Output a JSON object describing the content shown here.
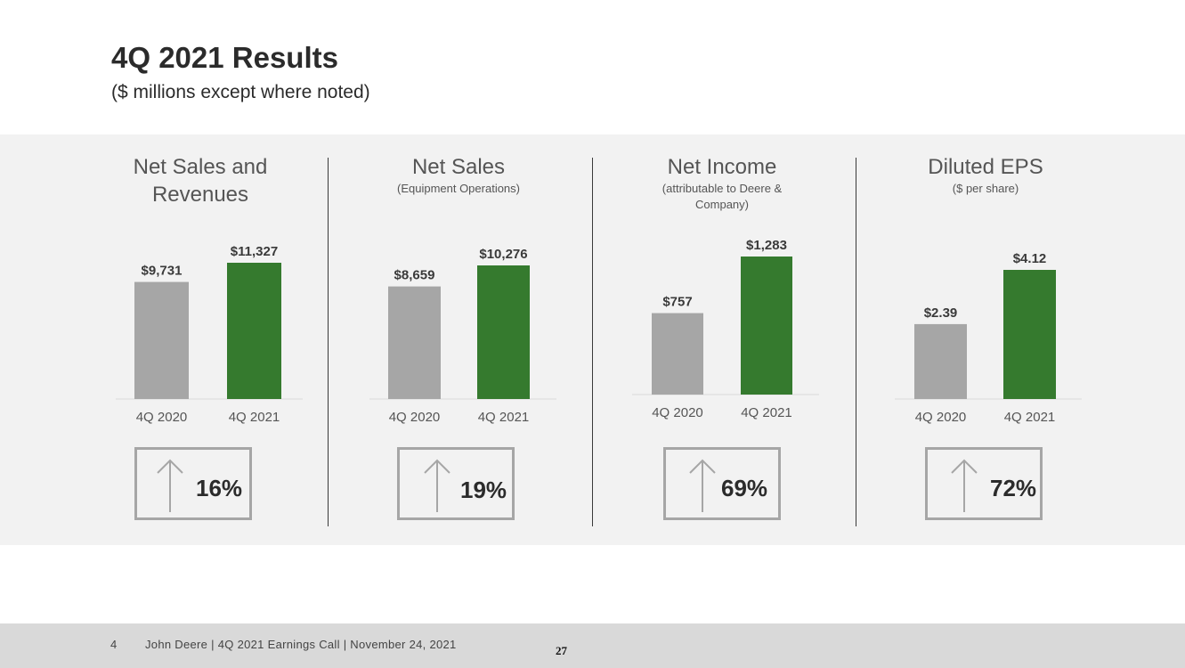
{
  "slide": {
    "title": "4Q 2021 Results",
    "subtitle": "($ millions except where noted)"
  },
  "colors": {
    "prior": "#a6a6a6",
    "current": "#357a2e",
    "panel": "#f2f2f2"
  },
  "icons": {
    "change": "up-arrow-icon"
  },
  "chart_data": [
    {
      "type": "bar",
      "title": "Net Sales and Revenues",
      "subtitle": "",
      "categories": [
        "4Q 2020",
        "4Q 2021"
      ],
      "values": [
        9731,
        11327
      ],
      "labels": [
        "$9,731",
        "$11,327"
      ],
      "change": "16%"
    },
    {
      "type": "bar",
      "title": "Net Sales",
      "subtitle": "(Equipment Operations)",
      "categories": [
        "4Q 2020",
        "4Q 2021"
      ],
      "values": [
        8659,
        10276
      ],
      "labels": [
        "$8,659",
        "$10,276"
      ],
      "change": "19%"
    },
    {
      "type": "bar",
      "title": "Net Income",
      "subtitle": "(attributable to Deere & Company)",
      "categories": [
        "4Q 2020",
        "4Q 2021"
      ],
      "values": [
        757,
        1283
      ],
      "labels": [
        "$757",
        "$1,283"
      ],
      "change": "69%"
    },
    {
      "type": "bar",
      "title": "Diluted EPS",
      "subtitle": "($ per share)",
      "categories": [
        "4Q 2020",
        "4Q 2021"
      ],
      "values": [
        2.39,
        4.12
      ],
      "labels": [
        "$2.39",
        "$4.12"
      ],
      "change": "72%"
    }
  ],
  "footer": {
    "number": "4",
    "text": "John Deere | 4Q 2021 Earnings Call | November 24, 2021",
    "page": "27"
  }
}
